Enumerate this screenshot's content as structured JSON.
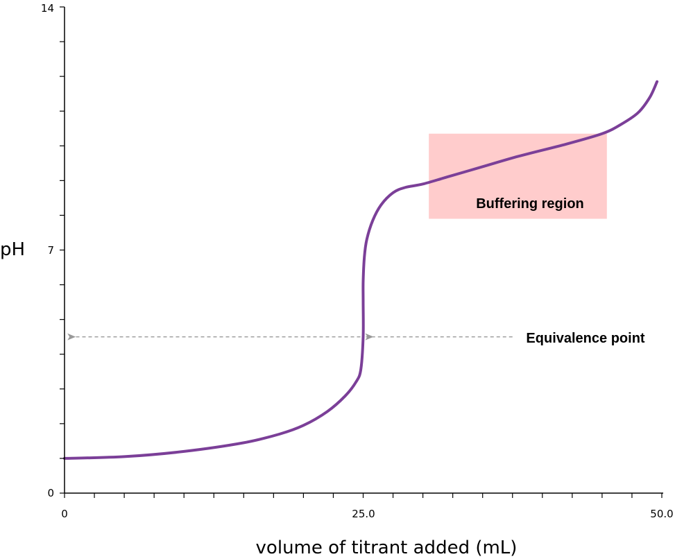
{
  "chart_data": {
    "type": "line",
    "title": "",
    "xlabel": "volume of titrant added (mL)",
    "ylabel": "pH",
    "xlim": [
      0,
      50
    ],
    "ylim": [
      0,
      14
    ],
    "x_tick_labels": [
      {
        "value": 0,
        "label": "0"
      },
      {
        "value": 25,
        "label": "25.0"
      },
      {
        "value": 50,
        "label": "50.0"
      }
    ],
    "y_tick_labels": [
      {
        "value": 0,
        "label": "0"
      },
      {
        "value": 7,
        "label": "7"
      },
      {
        "value": 14,
        "label": "14"
      }
    ],
    "x_minor_step": 2.5,
    "y_minor_step": 1,
    "grid": false,
    "legend": "none",
    "series": [
      {
        "color": "#7b3f98",
        "x": [
          0,
          5,
          10,
          15,
          18,
          20,
          22,
          23.5,
          24.4,
          24.8,
          25,
          25,
          25,
          25.1,
          25.3,
          25.8,
          26.5,
          27.5,
          28.5,
          30,
          32,
          35,
          38,
          42,
          45,
          46.5,
          48,
          49,
          49.6
        ],
        "y": [
          1.0,
          1.05,
          1.2,
          1.45,
          1.7,
          1.95,
          2.35,
          2.8,
          3.2,
          3.55,
          4.5,
          5.5,
          6.1,
          6.8,
          7.3,
          7.85,
          8.3,
          8.65,
          8.8,
          8.9,
          9.1,
          9.4,
          9.7,
          10.05,
          10.35,
          10.6,
          10.95,
          11.4,
          11.85
        ]
      }
    ],
    "annotations": [
      {
        "type": "region",
        "label": "Buffering region",
        "x_range": [
          30.5,
          45.4
        ],
        "y_range": [
          7.9,
          10.35
        ],
        "color": "#ffcccc"
      },
      {
        "type": "arrow",
        "label": "Equivalence point",
        "y": 4.5,
        "x_from": 37.5,
        "x_to": 0.3,
        "through_x": 25,
        "color": "#999999"
      }
    ]
  }
}
